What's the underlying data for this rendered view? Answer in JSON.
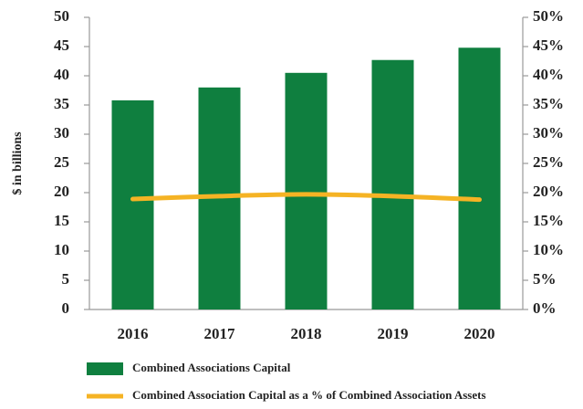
{
  "chart_data": {
    "type": "bar",
    "y_label": "$ in billions",
    "categories": [
      "2016",
      "2017",
      "2018",
      "2019",
      "2020"
    ],
    "series": [
      {
        "name": "Combined Associations Capital",
        "type": "bar",
        "color": "#0f7f3f",
        "values": [
          35.8,
          38.0,
          40.5,
          42.7,
          44.8
        ]
      },
      {
        "name": "Combined Association Capital as a % of Combined Association Assets",
        "type": "line",
        "axis": "y2",
        "color": "#f5b324",
        "values": [
          18.9,
          19.4,
          19.7,
          19.4,
          18.8
        ]
      }
    ],
    "ylim": [
      0,
      50
    ],
    "yticks": [
      0,
      5,
      10,
      15,
      20,
      25,
      30,
      35,
      40,
      45,
      50
    ],
    "y2lim": [
      0,
      50
    ],
    "y2ticks": [
      {
        "value": 0,
        "label": "0%"
      },
      {
        "value": 5,
        "label": "5%"
      },
      {
        "value": 10,
        "label": "10%"
      },
      {
        "value": 15,
        "label": "15%"
      },
      {
        "value": 20,
        "label": "20%"
      },
      {
        "value": 25,
        "label": "25%"
      },
      {
        "value": 30,
        "label": "30%"
      },
      {
        "value": 35,
        "label": "35%"
      },
      {
        "value": 40,
        "label": "40%"
      },
      {
        "value": 45,
        "label": "45%"
      },
      {
        "value": 50,
        "label": "50%"
      }
    ],
    "legend": "bottom"
  }
}
